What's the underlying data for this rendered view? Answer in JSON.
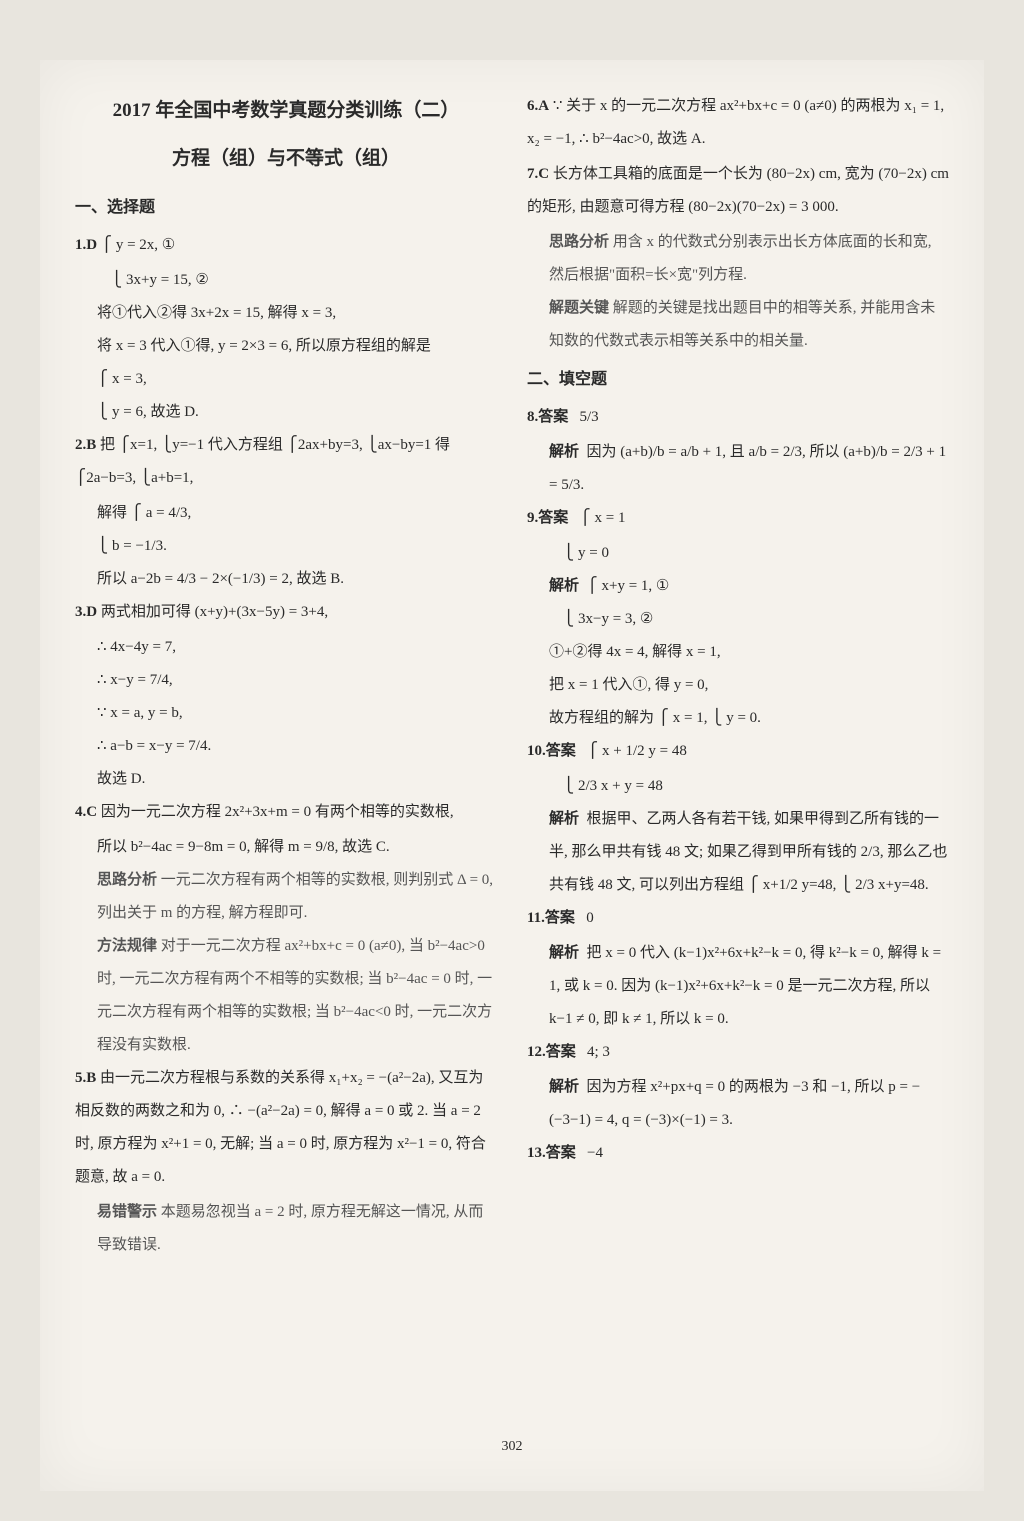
{
  "page_number": "302",
  "title_line1": "2017 年全国中考数学真题分类训练（二）",
  "title_line2": "方程（组）与不等式（组）",
  "section1": "一、选择题",
  "section2": "二、填空题",
  "left": {
    "q1_num": "1.D",
    "q1_l1": "⎧ y = 2x, ①",
    "q1_l2": "⎩ 3x+y = 15, ②",
    "q1_l3": "将①代入②得 3x+2x = 15, 解得 x = 3,",
    "q1_l4": "将 x = 3 代入①得, y = 2×3 = 6, 所以原方程组的解是",
    "q1_l5": "⎧ x = 3,",
    "q1_l6": "⎩ y = 6, 故选 D.",
    "q2_num": "2.B",
    "q2_l1": "把 ⎧x=1, ⎩y=−1 代入方程组 ⎧2ax+by=3, ⎩ax−by=1 得 ⎧2a−b=3, ⎩a+b=1,",
    "q2_l2": "解得 ⎧ a = 4/3,",
    "q2_l3": "        ⎩ b = −1/3.",
    "q2_l4": "所以 a−2b = 4/3 − 2×(−1/3) = 2, 故选 B.",
    "q3_num": "3.D",
    "q3_l1": "两式相加可得 (x+y)+(3x−5y) = 3+4,",
    "q3_l2": "∴ 4x−4y = 7,",
    "q3_l3": "∴ x−y = 7/4,",
    "q3_l4": "∵ x = a, y = b,",
    "q3_l5": "∴ a−b = x−y = 7/4.",
    "q3_l6": "故选 D.",
    "q4_num": "4.C",
    "q4_l1": "因为一元二次方程 2x²+3x+m = 0 有两个相等的实数根,",
    "q4_l2": "所以 b²−4ac = 9−8m = 0, 解得 m = 9/8, 故选 C.",
    "q4_n1_label": "思路分析",
    "q4_n1": "一元二次方程有两个相等的实数根, 则判别式 Δ = 0, 列出关于 m 的方程, 解方程即可.",
    "q4_n2_label": "方法规律",
    "q4_n2": "对于一元二次方程 ax²+bx+c = 0 (a≠0), 当 b²−4ac>0 时, 一元二次方程有两个不相等的实数根; 当 b²−4ac = 0 时, 一元二次方程有两个相等的实数根; 当 b²−4ac<0 时, 一元二次方程没有实数根.",
    "q5_num": "5.B",
    "q5_l1": "由一元二次方程根与系数的关系得 x₁+x₂ = −(a²−2a), 又互为相反数的两数之和为 0, ∴ −(a²−2a) = 0, 解得 a = 0 或 2. 当 a = 2 时, 原方程为 x²+1 = 0, 无解; 当 a = 0 时, 原方程为 x²−1 = 0, 符合题意, 故 a = 0.",
    "q5_n_label": "易错警示",
    "q5_n": "本题易忽视当 a = 2 时, 原方程无解这一情况, 从而导致错误."
  },
  "right": {
    "q6_num": "6.A",
    "q6_l1": "∵ 关于 x 的一元二次方程 ax²+bx+c = 0 (a≠0) 的两根为 x₁ = 1, x₂ = −1, ∴ b²−4ac>0, 故选 A.",
    "q7_num": "7.C",
    "q7_l1": "长方体工具箱的底面是一个长为 (80−2x) cm, 宽为 (70−2x) cm 的矩形, 由题意可得方程 (80−2x)(70−2x) = 3 000.",
    "q7_n1_label": "思路分析",
    "q7_n1": "用含 x 的代数式分别表示出长方体底面的长和宽, 然后根据\"面积=长×宽\"列方程.",
    "q7_n2_label": "解题关键",
    "q7_n2": "解题的关键是找出题目中的相等关系, 并能用含未知数的代数式表示相等关系中的相关量.",
    "q8_num": "8.答案",
    "q8_ans": "5/3",
    "q8_exp_label": "解析",
    "q8_exp": "因为 (a+b)/b = a/b + 1, 且 a/b = 2/3, 所以 (a+b)/b = 2/3 + 1 = 5/3.",
    "q9_num": "9.答案",
    "q9_ans1": "⎧ x = 1",
    "q9_ans2": "⎩ y = 0",
    "q9_exp_label": "解析",
    "q9_exp1": "⎧ x+y = 1, ①",
    "q9_exp2": "⎩ 3x−y = 3, ②",
    "q9_exp3": "①+②得 4x = 4, 解得 x = 1,",
    "q9_exp4": "把 x = 1 代入①, 得 y = 0,",
    "q9_exp5": "故方程组的解为 ⎧ x = 1, ⎩ y = 0.",
    "q10_num": "10.答案",
    "q10_ans1": "⎧ x + 1/2 y = 48",
    "q10_ans2": "⎩ 2/3 x + y = 48",
    "q10_exp_label": "解析",
    "q10_exp": "根据甲、乙两人各有若干钱, 如果甲得到乙所有钱的一半, 那么甲共有钱 48 文; 如果乙得到甲所有钱的 2/3, 那么乙也共有钱 48 文, 可以列出方程组 ⎧ x+1/2 y=48, ⎩ 2/3 x+y=48.",
    "q11_num": "11.答案",
    "q11_ans": "0",
    "q11_exp_label": "解析",
    "q11_exp": "把 x = 0 代入 (k−1)x²+6x+k²−k = 0, 得 k²−k = 0, 解得 k = 1, 或 k = 0. 因为 (k−1)x²+6x+k²−k = 0 是一元二次方程, 所以 k−1 ≠ 0, 即 k ≠ 1, 所以 k = 0.",
    "q12_num": "12.答案",
    "q12_ans": "4; 3",
    "q12_exp_label": "解析",
    "q12_exp": "因为方程 x²+px+q = 0 的两根为 −3 和 −1, 所以 p = −(−3−1) = 4, q = (−3)×(−1) = 3.",
    "q13_num": "13.答案",
    "q13_ans": "−4"
  },
  "colors": {
    "bg": "#e8e5de",
    "paper": "#f5f2ec",
    "text": "#2a2a2a",
    "note": "#555555"
  }
}
